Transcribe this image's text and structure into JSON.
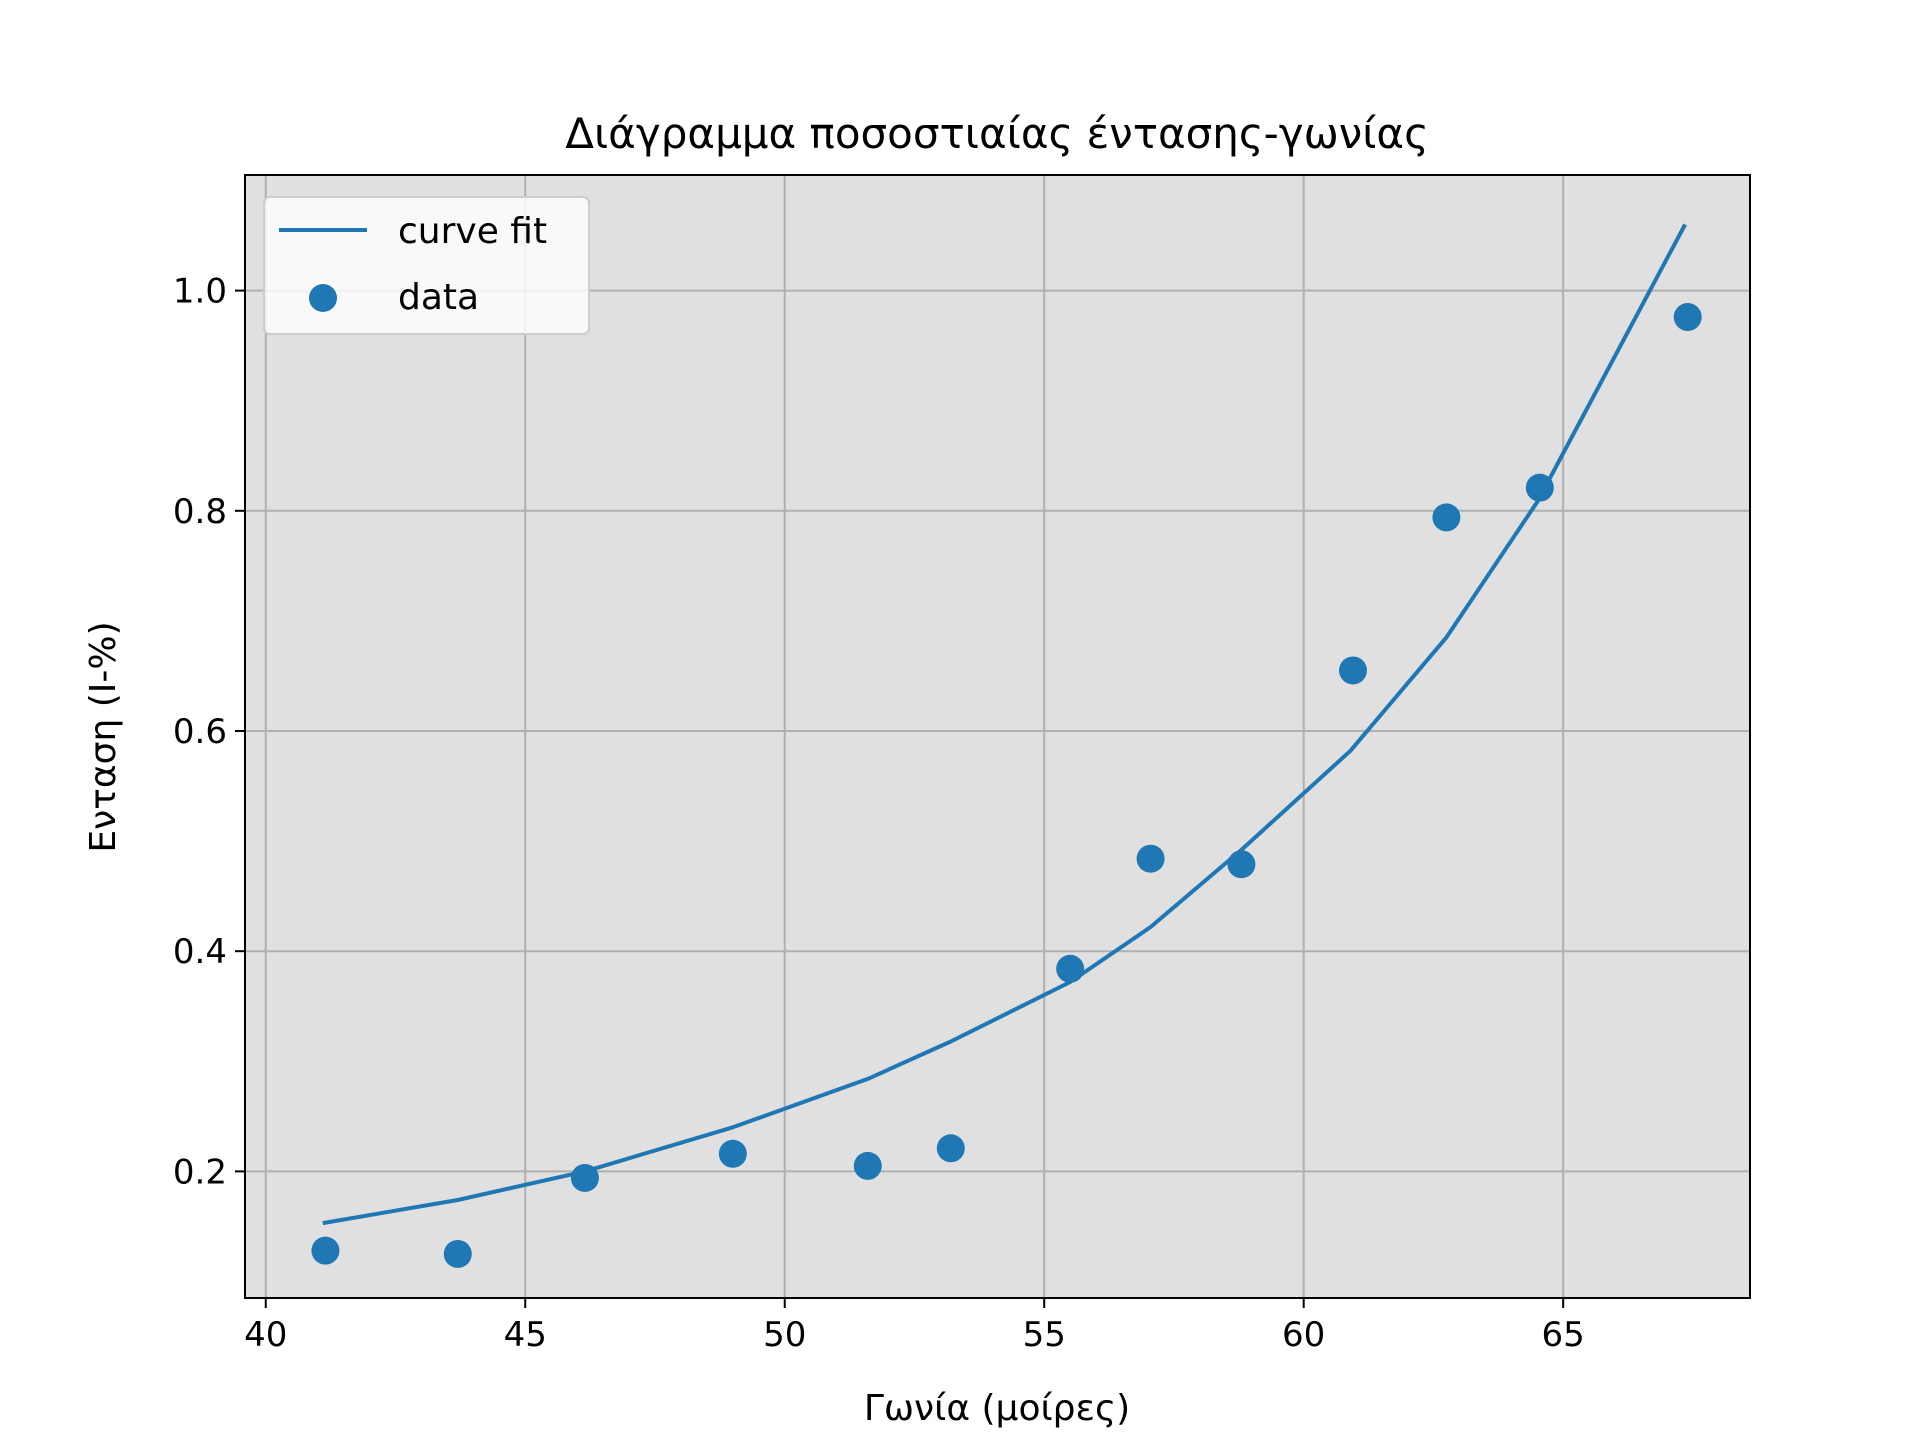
{
  "chart_data": {
    "type": "scatter",
    "title": "Διάγραμμα ποσοστιαίας έντασης-γωνίας",
    "xlabel": "Γωνία (μοίρες)",
    "ylabel": "Ενταση (I-%)",
    "xlim": [
      39.6,
      68.6
    ],
    "ylim": [
      0.085,
      1.105
    ],
    "x_ticks": [
      40,
      45,
      50,
      55,
      60,
      65
    ],
    "x_tick_labels": [
      "40",
      "45",
      "50",
      "55",
      "60",
      "65"
    ],
    "y_ticks": [
      0.2,
      0.4,
      0.6,
      0.8,
      1.0
    ],
    "y_tick_labels": [
      "0.2",
      "0.4",
      "0.6",
      "0.8",
      "1.0"
    ],
    "grid": true,
    "legend_position": "upper-left",
    "background_color": "#e0e0e0",
    "series": [
      {
        "name": "curve fit",
        "kind": "line",
        "color": "#1f77b4",
        "x": [
          41.1,
          43.7,
          46.15,
          49.0,
          51.6,
          53.2,
          55.5,
          57.05,
          58.8,
          60.9,
          62.75,
          64.5,
          67.35
        ],
        "y": [
          0.153,
          0.174,
          0.2,
          0.24,
          0.284,
          0.318,
          0.372,
          0.422,
          0.492,
          0.582,
          0.685,
          0.808,
          1.06
        ]
      },
      {
        "name": "data",
        "kind": "scatter",
        "color": "#1f77b4",
        "x": [
          41.15,
          43.7,
          46.15,
          49.0,
          51.6,
          53.2,
          55.5,
          57.05,
          58.8,
          60.95,
          62.75,
          64.55,
          67.4
        ],
        "y": [
          0.128,
          0.125,
          0.194,
          0.216,
          0.205,
          0.221,
          0.384,
          0.484,
          0.479,
          0.655,
          0.794,
          0.821,
          0.976
        ]
      }
    ]
  }
}
